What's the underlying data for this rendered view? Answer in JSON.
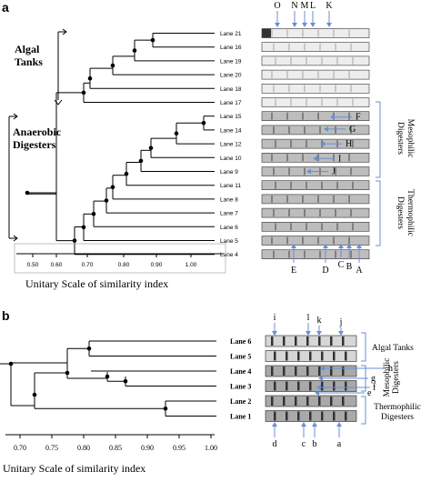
{
  "panel_a": {
    "letter": "a",
    "group_algal": "Algal\nTanks",
    "group_anaerobic": "Anaerobic\nDigesters",
    "lanes": [
      "Lane 21",
      "Lane 16",
      "Lane 19",
      "Lane 20",
      "Lane 18",
      "Lane 17",
      "Lane 15",
      "Lane 14",
      "Lane 12",
      "Lane 10",
      "Lane 9",
      "Lane 11",
      "Lane 8",
      "Lane 7",
      "Lane 6",
      "Lane 5",
      "Lane 4"
    ],
    "ticks": [
      "0.50",
      "0.60",
      "0.70",
      "0.80",
      "0.90",
      "1.00"
    ],
    "axis_title": "Unitary Scale of similarity index",
    "top_letters": [
      "O",
      "N",
      "M",
      "L",
      "K"
    ],
    "right_letters": [
      "F",
      "G",
      "H",
      "I",
      "J"
    ],
    "bottom_letters": [
      "E",
      "D",
      "C",
      "B",
      "A"
    ],
    "side_mesophilic": "Mesophilic\nDigesters",
    "side_thermophilic": "Thermophilic\nDigesters"
  },
  "panel_b": {
    "letter": "b",
    "lanes": [
      "Lane 6",
      "Lane 5",
      "Lane 4",
      "Lane 3",
      "Lane 2",
      "Lane 1"
    ],
    "ticks": [
      "0.70",
      "0.75",
      "0.80",
      "0.85",
      "0.90",
      "0.95",
      "1.00"
    ],
    "axis_title": "Unitary Scale of similarity index",
    "top_letters": [
      "i",
      "l",
      "k",
      "j"
    ],
    "right_letters": [
      "h",
      "g",
      "f",
      "e"
    ],
    "bottom_letters": [
      "d",
      "c",
      "b",
      "a"
    ],
    "side_algal": "Algal Tanks",
    "side_mesophilic": "Mesophilic\nDigesters",
    "side_thermophilic": "Thermophilic\nDigesters"
  }
}
